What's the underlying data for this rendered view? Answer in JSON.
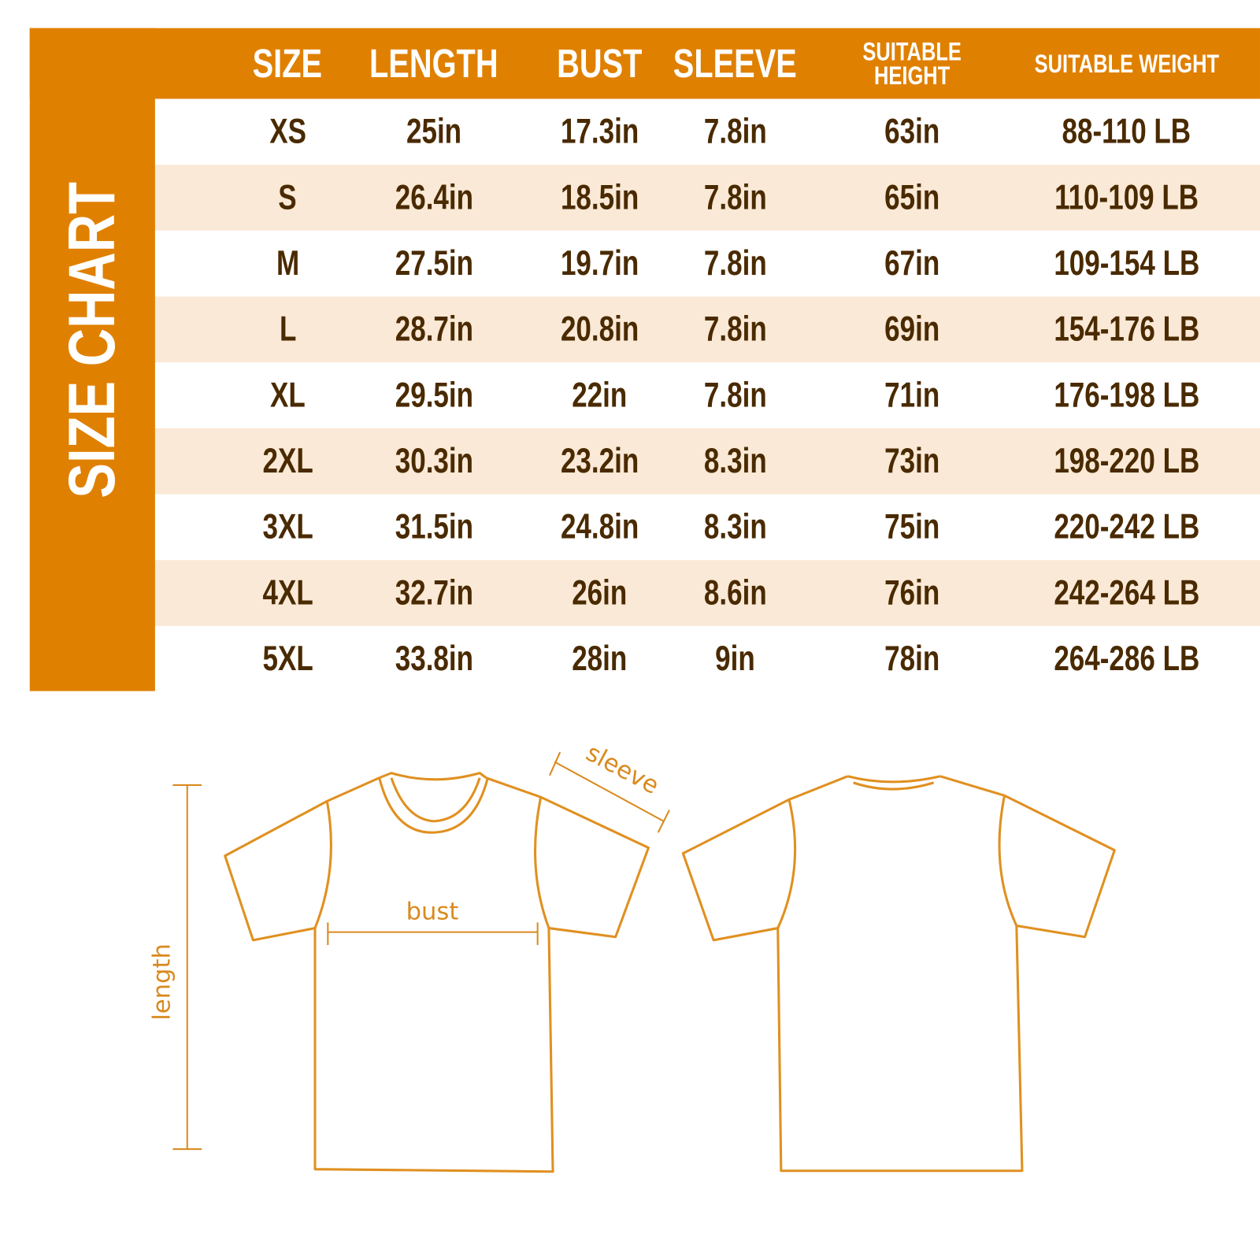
{
  "title": "SIZE CHART",
  "colors": {
    "accent": "#E08000",
    "stripe": "#FAE9D6",
    "text": "#4A2A00",
    "outline": "#E09020"
  },
  "table": {
    "headers": [
      "SIZE",
      "LENGTH",
      "BUST",
      "SLEEVE",
      "SUITABLE HEIGHT",
      "SUITABLE WEIGHT"
    ],
    "rows": [
      [
        "XS",
        "25in",
        "17.3in",
        "7.8in",
        "63in",
        "88-110 LB"
      ],
      [
        "S",
        "26.4in",
        "18.5in",
        "7.8in",
        "65in",
        "110-109 LB"
      ],
      [
        "M",
        "27.5in",
        "19.7in",
        "7.8in",
        "67in",
        "109-154 LB"
      ],
      [
        "L",
        "28.7in",
        "20.8in",
        "7.8in",
        "69in",
        "154-176 LB"
      ],
      [
        "XL",
        "29.5in",
        "22in",
        "7.8in",
        "71in",
        "176-198 LB"
      ],
      [
        "2XL",
        "30.3in",
        "23.2in",
        "8.3in",
        "73in",
        "198-220 LB"
      ],
      [
        "3XL",
        "31.5in",
        "24.8in",
        "8.3in",
        "75in",
        "220-242 LB"
      ],
      [
        "4XL",
        "32.7in",
        "26in",
        "8.6in",
        "76in",
        "242-264 LB"
      ],
      [
        "5XL",
        "33.8in",
        "28in",
        "9in",
        "78in",
        "264-286 LB"
      ]
    ]
  },
  "diagram": {
    "length_label": "length",
    "bust_label": "bust",
    "sleeve_label": "sleeve"
  }
}
